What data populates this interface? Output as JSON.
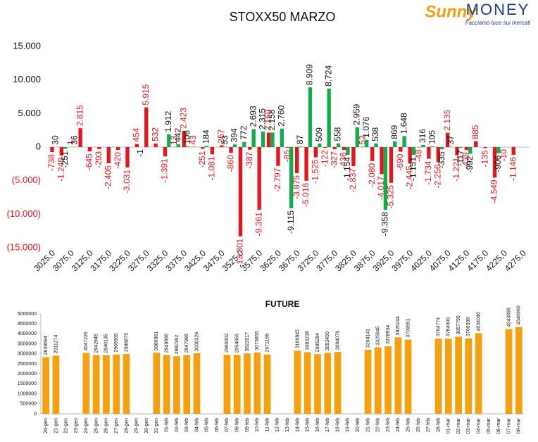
{
  "logo": {
    "brand_a": "Sunny",
    "brand_b": "MONEY",
    "tagline": "Facciamo luce sui mercati"
  },
  "chart_data": [
    {
      "type": "bar",
      "title": "STOXX50 MARZO",
      "categories": [
        "3025,0",
        null,
        "3075,0",
        null,
        "3125,0",
        null,
        "3175,0",
        null,
        "3225,0",
        null,
        "3275,0",
        null,
        "3325,0",
        null,
        "3375,0",
        null,
        "3425,0",
        null,
        "3475,0",
        null,
        "3525,0",
        null,
        "3575,0",
        null,
        "3625,0",
        null,
        "3675,0",
        null,
        "3725,0",
        null,
        "3775,0",
        null,
        "3825,0",
        null,
        "3875,0",
        null,
        "3925,0",
        null,
        "3975,0",
        null,
        "4025,0",
        null,
        "4075,0",
        null,
        "4125,0",
        null,
        "4175,0",
        null,
        "4225,0",
        null,
        "4275,0"
      ],
      "series": [
        {
          "color": "#e8141b",
          "label_color": "#e8141b",
          "values": [
            -738,
            -1249,
            1,
            2815,
            -645,
            -293,
            -2405,
            -420,
            -3031,
            454,
            5915,
            532,
            -1391,
            13,
            2423,
            43,
            -251,
            -1081,
            257,
            -860,
            -13301,
            -387,
            -9361,
            2150,
            -2797,
            -85,
            -3875,
            -5016,
            -1525,
            -122,
            -327,
            -436,
            -2837,
            52,
            -2080,
            -4017,
            -5325,
            -690,
            -2445,
            -48,
            -1734,
            -2256,
            2135,
            -1221,
            -439,
            885,
            -135,
            -4549,
            -10,
            -1146,
            null
          ],
          "value_labels": [
            "-738",
            "-1.249",
            "1",
            "2.815",
            "-645",
            "-293",
            "-2.405",
            "-420",
            "-3.031",
            "454",
            "5.915",
            "532",
            "-1.391",
            "13",
            "2.423",
            "43",
            "-251",
            "-1.081",
            "257",
            "-860",
            "-13.301",
            "-387",
            "-9.361",
            "2.150",
            "-2.797",
            "-85",
            "-3.875",
            "-5.016",
            "-1.525",
            "-122",
            "-327",
            "-436",
            "-2.837",
            "52",
            "-2.080",
            "-4.017",
            "-5.325",
            "-690",
            "-2.445",
            "-48",
            "-1.734",
            "-2.256",
            "2.135",
            "-1.221",
            "-439",
            "885",
            "-135",
            "-4.549",
            "-10",
            "-1.146",
            null
          ]
        },
        {
          "color": "#0fae4b",
          "label_color": "#111111",
          "values": [
            30,
            -251,
            36,
            null,
            null,
            null,
            null,
            null,
            null,
            -1,
            null,
            null,
            1912,
            442,
            106,
            null,
            184,
            null,
            53,
            394,
            772,
            2693,
            2315,
            2158,
            2760,
            -9115,
            87,
            8909,
            509,
            8724,
            558,
            -1154,
            2959,
            1076,
            538,
            -9358,
            869,
            1648,
            -1151,
            316,
            105,
            -335,
            37,
            -117,
            -992,
            null,
            null,
            -906,
            null,
            null,
            null
          ],
          "value_labels": [
            "30",
            "-251",
            "36",
            null,
            null,
            null,
            null,
            null,
            null,
            "-1",
            null,
            null,
            "1.912",
            "442",
            "106",
            null,
            "184",
            null,
            "53",
            "394",
            "772",
            "2.693",
            "2.315",
            "2.158",
            "2.760",
            "-9.115",
            "87",
            "8.909",
            "509",
            "8.724",
            "558",
            "-1.154",
            "2.959",
            "1.076",
            "538",
            "-9.358",
            "869",
            "1.648",
            "-1.151",
            "316",
            "105",
            "-335",
            "37",
            "-117",
            "-992",
            null,
            null,
            "-906",
            null,
            null,
            null
          ]
        }
      ],
      "ylim": [
        -15000,
        15000
      ],
      "yticks": [
        {
          "value": 15000,
          "label": "15.000"
        },
        {
          "value": 10000,
          "label": "10.000"
        },
        {
          "value": 5000,
          "label": "5.000"
        },
        0,
        {
          "value": -5000,
          "label": "(5.000)"
        },
        {
          "value": -10000,
          "label": "(10.000)"
        },
        {
          "value": -15000,
          "label": "(15.000)"
        }
      ],
      "negative_tick_color": "#e8141b"
    },
    {
      "type": "bar",
      "title": "FUTURE",
      "color": "#f5a00f",
      "categories": [
        "20-gen",
        "21-gen",
        "22-gen",
        "23-gen",
        "24-gen",
        "25-gen",
        "26-gen",
        "27-gen",
        "28-gen",
        "29-gen",
        "30-gen",
        "31-gen",
        "01-feb",
        "02-feb",
        "03-feb",
        "04-feb",
        "05-feb",
        "06-feb",
        "07-feb",
        "08-feb",
        "09-feb",
        "10-feb",
        "11-feb",
        "12-feb",
        "13-feb",
        "14-feb",
        "15-feb",
        "16-feb",
        "17-feb",
        "18-feb",
        "19-feb",
        "20-feb",
        "21-feb",
        "22-feb",
        "23-feb",
        "24-feb",
        "25-feb",
        "26-feb",
        "27-feb",
        "28-feb",
        "01-mar",
        "02-mar",
        "03-mar",
        "04-mar",
        "05-mar",
        "06-mar",
        "07-mar",
        "08-mar"
      ],
      "values": [
        2839694,
        2911274,
        null,
        null,
        3047226,
        2942645,
        2940135,
        2969985,
        2988875,
        null,
        null,
        3060961,
        2949896,
        2882362,
        2947985,
        3030326,
        null,
        null,
        2960002,
        2954655,
        3022017,
        3073855,
        2971158,
        null,
        null,
        3160845,
        3083238,
        2985284,
        3053450,
        3094079,
        null,
        null,
        3204141,
        3325845,
        3378934,
        3826244,
        3709551,
        null,
        null,
        3764774,
        3764009,
        3857795,
        3769398,
        4034046,
        null,
        null,
        4243898,
        4346960
      ],
      "ylim": [
        0,
        5000000
      ],
      "yticks": [
        0,
        500000,
        1000000,
        1500000,
        2000000,
        2500000,
        3000000,
        3500000,
        4000000,
        4500000,
        5000000
      ]
    }
  ]
}
